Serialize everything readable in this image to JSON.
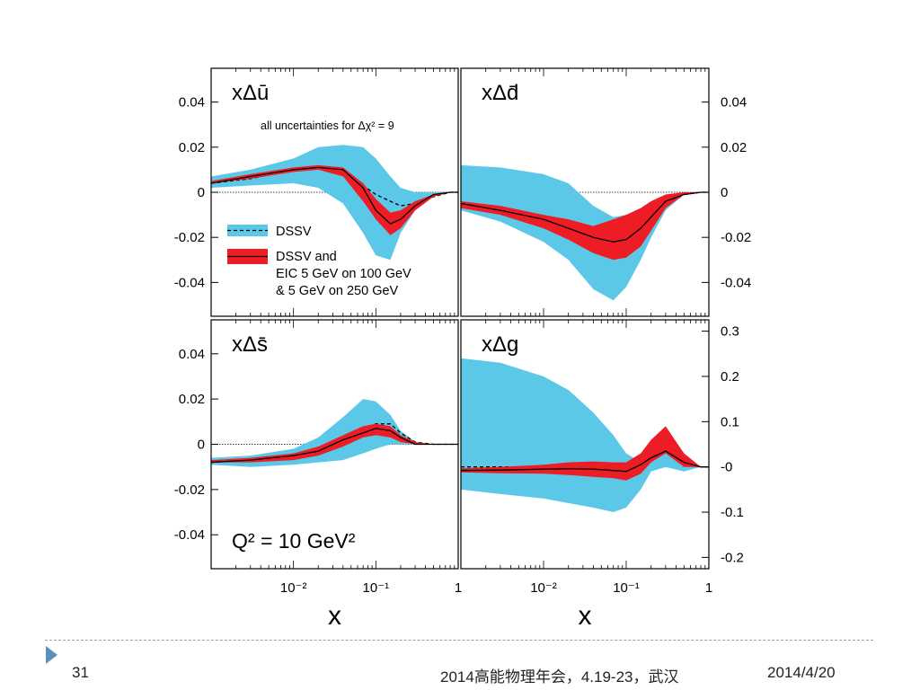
{
  "chart_data": [
    {
      "type": "area",
      "panel": "top-left",
      "title": "xΔū",
      "xscale": "log",
      "xlim": [
        0.001,
        1
      ],
      "ylim": [
        -0.055,
        0.055
      ],
      "yticks": [
        "0.04",
        "0.02",
        "0",
        "-0.02",
        "-0.04"
      ],
      "ytick_values": [
        0.04,
        0.02,
        0,
        -0.02,
        -0.04
      ],
      "annotation": "all uncertainties for Δχ² = 9",
      "legend_entries": [
        "DSSV",
        "DSSV and",
        "EIC 5 GeV on 100 GeV",
        "& 5 GeV on 250 GeV"
      ],
      "legend_placement": "lower-left",
      "x": [
        0.001,
        0.003,
        0.01,
        0.02,
        0.04,
        0.07,
        0.1,
        0.15,
        0.2,
        0.3,
        0.5,
        0.8,
        1
      ],
      "series": [
        {
          "name": "DSSV",
          "kind": "band",
          "upper": [
            0.007,
            0.01,
            0.015,
            0.02,
            0.021,
            0.02,
            0.015,
            0.007,
            0.002,
            0.0,
            0.0,
            0.0,
            0.0
          ],
          "lower": [
            0.002,
            0.003,
            0.004,
            0.002,
            -0.005,
            -0.018,
            -0.028,
            -0.03,
            -0.018,
            -0.008,
            -0.002,
            0.0,
            0.0
          ]
        },
        {
          "name": "DSSV",
          "kind": "line",
          "values": [
            0.004,
            0.006,
            0.01,
            0.011,
            0.009,
            0.003,
            -0.001,
            -0.004,
            -0.006,
            -0.005,
            -0.002,
            0.0,
            0.0
          ]
        },
        {
          "name": "DSSV and EIC 5 GeV on 100 GeV & 5 GeV on 250 GeV",
          "kind": "band",
          "upper": [
            0.005,
            0.008,
            0.011,
            0.012,
            0.011,
            0.004,
            -0.003,
            -0.009,
            -0.008,
            -0.004,
            -0.001,
            0.0,
            0.0
          ],
          "lower": [
            0.004,
            0.006,
            0.009,
            0.01,
            0.007,
            -0.004,
            -0.012,
            -0.019,
            -0.016,
            -0.008,
            -0.002,
            0.0,
            0.0
          ]
        },
        {
          "name": "DSSV and EIC 5 GeV on 100 GeV & 5 GeV on 250 GeV",
          "kind": "line",
          "values": [
            0.004,
            0.007,
            0.01,
            0.011,
            0.01,
            0.002,
            -0.008,
            -0.014,
            -0.012,
            -0.006,
            -0.001,
            0.0,
            0.0
          ]
        }
      ]
    },
    {
      "type": "area",
      "panel": "top-right",
      "title": "xΔd̄",
      "xscale": "log",
      "xlim": [
        0.001,
        1
      ],
      "ylim": [
        -0.055,
        0.055
      ],
      "yticks": [
        "0.04",
        "0.02",
        "0",
        "-0.02",
        "-0.04"
      ],
      "ytick_values": [
        0.04,
        0.02,
        0,
        -0.02,
        -0.04
      ],
      "x": [
        0.001,
        0.003,
        0.01,
        0.02,
        0.04,
        0.07,
        0.1,
        0.15,
        0.2,
        0.3,
        0.5,
        0.8,
        1
      ],
      "series": [
        {
          "name": "DSSV",
          "kind": "band",
          "upper": [
            0.012,
            0.011,
            0.008,
            0.004,
            -0.006,
            -0.011,
            -0.01,
            -0.007,
            -0.004,
            -0.001,
            0.0,
            0.0,
            0.0
          ],
          "lower": [
            -0.008,
            -0.013,
            -0.022,
            -0.03,
            -0.043,
            -0.048,
            -0.042,
            -0.03,
            -0.02,
            -0.008,
            -0.001,
            0.0,
            0.0
          ]
        },
        {
          "name": "DSSV",
          "kind": "line",
          "values": [
            -0.006,
            -0.009,
            -0.014,
            -0.018,
            -0.024,
            -0.028,
            -0.027,
            -0.022,
            -0.016,
            -0.006,
            -0.001,
            0.0,
            0.0
          ]
        },
        {
          "name": "DSSV and EIC 5 GeV on 100 GeV & 5 GeV on 250 GeV",
          "kind": "band",
          "upper": [
            -0.004,
            -0.006,
            -0.01,
            -0.012,
            -0.015,
            -0.012,
            -0.01,
            -0.007,
            -0.004,
            -0.001,
            0.0,
            0.0,
            0.0
          ],
          "lower": [
            -0.007,
            -0.01,
            -0.016,
            -0.021,
            -0.027,
            -0.03,
            -0.029,
            -0.024,
            -0.017,
            -0.007,
            -0.001,
            0.0,
            0.0
          ]
        },
        {
          "name": "DSSV and EIC 5 GeV on 100 GeV & 5 GeV on 250 GeV",
          "kind": "line",
          "values": [
            -0.005,
            -0.008,
            -0.012,
            -0.016,
            -0.02,
            -0.022,
            -0.021,
            -0.016,
            -0.011,
            -0.004,
            -0.001,
            0.0,
            0.0
          ]
        }
      ]
    },
    {
      "type": "area",
      "panel": "bottom-left",
      "title": "xΔs̄",
      "xscale": "log",
      "xlim": [
        0.001,
        1
      ],
      "ylim": [
        -0.055,
        0.055
      ],
      "yticks": [
        "0.04",
        "0.02",
        "0",
        "-0.02",
        "-0.04"
      ],
      "ytick_values": [
        0.04,
        0.02,
        0,
        -0.02,
        -0.04
      ],
      "xticks": [
        "10⁻²",
        "10⁻¹",
        "1"
      ],
      "xtick_values": [
        0.01,
        0.1,
        1
      ],
      "xlabel": "x",
      "annotation": "Q² = 10 GeV²",
      "x": [
        0.001,
        0.003,
        0.01,
        0.02,
        0.04,
        0.07,
        0.1,
        0.15,
        0.2,
        0.3,
        0.5,
        0.8,
        1
      ],
      "series": [
        {
          "name": "DSSV",
          "kind": "band",
          "upper": [
            -0.006,
            -0.005,
            -0.002,
            0.003,
            0.012,
            0.02,
            0.019,
            0.013,
            0.006,
            0.001,
            0.0,
            0.0,
            0.0
          ],
          "lower": [
            -0.009,
            -0.01,
            -0.009,
            -0.008,
            -0.007,
            -0.004,
            -0.002,
            0.0,
            0.0,
            0.0,
            0.0,
            0.0,
            0.0
          ]
        },
        {
          "name": "DSSV",
          "kind": "line",
          "values": [
            -0.008,
            -0.007,
            -0.005,
            -0.002,
            0.003,
            0.007,
            0.009,
            0.009,
            0.005,
            0.001,
            0.0,
            0.0,
            0.0
          ]
        },
        {
          "name": "DSSV and EIC 5 GeV on 100 GeV & 5 GeV on 250 GeV",
          "kind": "band",
          "upper": [
            -0.007,
            -0.006,
            -0.004,
            -0.001,
            0.004,
            0.008,
            0.009,
            0.008,
            0.004,
            0.001,
            0.0,
            0.0,
            0.0
          ],
          "lower": [
            -0.008,
            -0.008,
            -0.007,
            -0.005,
            -0.001,
            0.003,
            0.004,
            0.003,
            0.001,
            0.0,
            0.0,
            0.0,
            0.0
          ]
        },
        {
          "name": "DSSV and EIC 5 GeV on 100 GeV & 5 GeV on 250 GeV",
          "kind": "line",
          "values": [
            -0.008,
            -0.007,
            -0.005,
            -0.003,
            0.002,
            0.005,
            0.007,
            0.006,
            0.003,
            0.0,
            0.0,
            0.0,
            0.0
          ]
        }
      ]
    },
    {
      "type": "area",
      "panel": "bottom-right",
      "title": "xΔg",
      "xscale": "log",
      "xlim": [
        0.001,
        1
      ],
      "ylim": [
        -0.225,
        0.325
      ],
      "yticks": [
        "0.3",
        "0.2",
        "0.1",
        "-0",
        "-0.1",
        "-0.2"
      ],
      "ytick_values": [
        0.3,
        0.2,
        0.1,
        0,
        -0.1,
        -0.2
      ],
      "xticks": [
        "10⁻²",
        "10⁻¹",
        "1"
      ],
      "xtick_values": [
        0.01,
        0.1,
        1
      ],
      "xlabel": "x",
      "x": [
        0.001,
        0.003,
        0.01,
        0.02,
        0.04,
        0.07,
        0.1,
        0.15,
        0.2,
        0.3,
        0.5,
        0.8,
        1
      ],
      "series": [
        {
          "name": "DSSV",
          "kind": "band",
          "upper": [
            0.24,
            0.23,
            0.2,
            0.17,
            0.12,
            0.07,
            0.03,
            0.01,
            0.03,
            0.05,
            0.02,
            0.0,
            0.0
          ],
          "lower": [
            -0.05,
            -0.06,
            -0.07,
            -0.08,
            -0.09,
            -0.1,
            -0.09,
            -0.05,
            -0.01,
            0.0,
            -0.01,
            0.0,
            0.0
          ]
        },
        {
          "name": "DSSV",
          "kind": "line",
          "values": [
            0.0,
            0.0,
            0.0,
            0.0,
            0.0,
            -0.005,
            -0.005,
            0.0,
            0.02,
            0.045,
            0.01,
            0.0,
            0.0
          ]
        },
        {
          "name": "DSSV and EIC 5 GeV on 100 GeV & 5 GeV on 250 GeV",
          "kind": "band",
          "upper": [
            -0.003,
            0.0,
            0.005,
            0.01,
            0.012,
            0.01,
            0.01,
            0.03,
            0.06,
            0.09,
            0.03,
            0.0,
            0.0
          ],
          "lower": [
            -0.012,
            -0.014,
            -0.015,
            -0.018,
            -0.022,
            -0.025,
            -0.03,
            -0.015,
            0.01,
            0.03,
            0.0,
            0.0,
            0.0
          ]
        },
        {
          "name": "DSSV and EIC 5 GeV on 100 GeV & 5 GeV on 250 GeV",
          "kind": "line",
          "values": [
            -0.008,
            -0.007,
            -0.005,
            -0.004,
            -0.005,
            -0.008,
            -0.01,
            0.005,
            0.02,
            0.035,
            0.01,
            0.0,
            0.0
          ]
        }
      ]
    }
  ],
  "colors": {
    "dssv_band": "#5bc8e8",
    "eic_band": "#ee1c24",
    "line": "#000000"
  },
  "footer": {
    "page_number": "31",
    "conference": "2014高能物理年会，4.19-23，武汉",
    "date": "2014/4/20"
  }
}
